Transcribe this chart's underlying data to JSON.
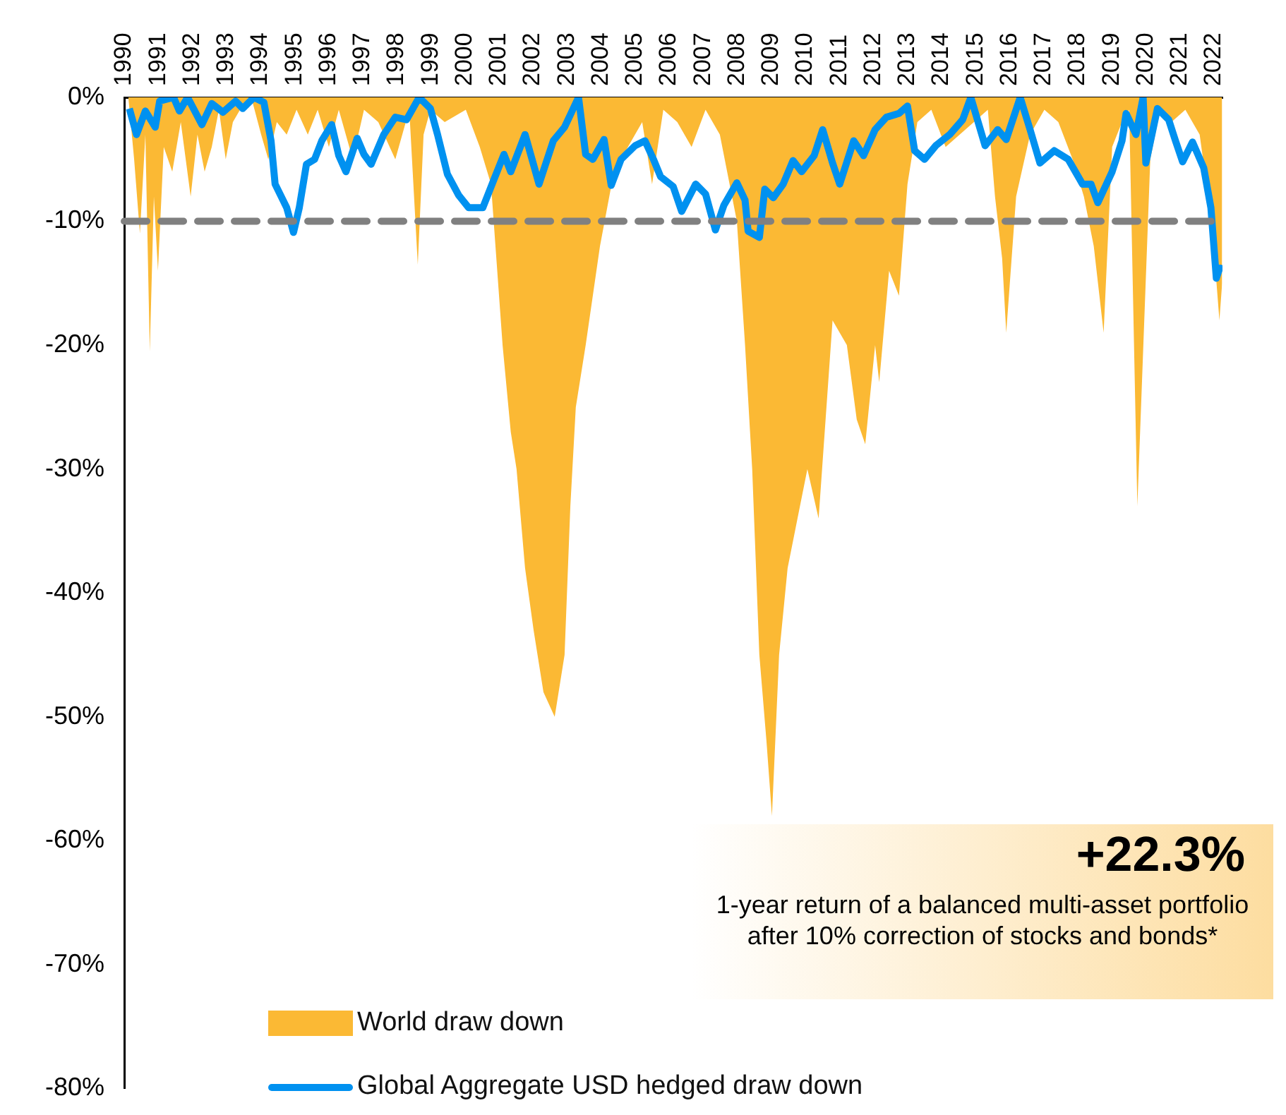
{
  "chart_data": {
    "type": "area",
    "xlim": [
      1990,
      2022.25
    ],
    "xticks": [
      1990,
      1991,
      1992,
      1993,
      1994,
      1995,
      1996,
      1997,
      1998,
      1999,
      2000,
      2001,
      2002,
      2003,
      2004,
      2005,
      2006,
      2007,
      2008,
      2009,
      2010,
      2011,
      2012,
      2013,
      2014,
      2015,
      2016,
      2017,
      2018,
      2019,
      2020,
      2021,
      2022
    ],
    "ylim": [
      -80,
      0
    ],
    "yticks": [
      {
        "value": 0,
        "label": "0%"
      },
      {
        "value": -10,
        "label": "-10%"
      },
      {
        "value": -20,
        "label": "-20%"
      },
      {
        "value": -30,
        "label": "-30%"
      },
      {
        "value": -40,
        "label": "-40%"
      },
      {
        "value": -50,
        "label": "-50%"
      },
      {
        "value": -60,
        "label": "-60%"
      },
      {
        "value": -70,
        "label": "-70%"
      },
      {
        "value": -80,
        "label": "-80%"
      }
    ],
    "grid": false,
    "legend": "bottom left",
    "series": [
      {
        "name": "World draw down",
        "type": "area",
        "color": "#fbb934",
        "x": [
          1990.12,
          1990.29,
          1990.46,
          1990.62,
          1990.75,
          1990.87,
          1990.99,
          1991.16,
          1991.41,
          1991.66,
          1991.95,
          1992.15,
          1992.36,
          1992.57,
          1992.78,
          1992.98,
          1993.19,
          1993.4,
          1993.73,
          1994.02,
          1994.23,
          1994.48,
          1994.77,
          1995.06,
          1995.39,
          1995.68,
          1996.01,
          1996.3,
          1996.71,
          1997.04,
          1997.46,
          1997.96,
          1998.37,
          1998.62,
          1998.79,
          1998.99,
          1999.41,
          2000.03,
          2000.44,
          2000.77,
          2001.11,
          2001.35,
          2001.52,
          2001.77,
          2002.02,
          2002.31,
          2002.64,
          2002.93,
          2003.1,
          2003.26,
          2003.55,
          2003.97,
          2004.38,
          2004.79,
          2005.21,
          2005.5,
          2005.83,
          2006.24,
          2006.66,
          2007.07,
          2007.49,
          2007.99,
          2008.23,
          2008.44,
          2008.65,
          2008.86,
          2009.02,
          2009.23,
          2009.48,
          2009.77,
          2010.06,
          2010.39,
          2010.8,
          2011.22,
          2011.51,
          2011.76,
          2012.05,
          2012.17,
          2012.46,
          2012.75,
          2013.0,
          2013.29,
          2013.7,
          2014.12,
          2014.95,
          2015.36,
          2015.57,
          2015.78,
          2015.9,
          2016.19,
          2016.6,
          2017.02,
          2017.43,
          2017.85,
          2018.18,
          2018.47,
          2018.76,
          2019.01,
          2019.3,
          2019.51,
          2019.75,
          2020.13,
          2020.42,
          2020.75,
          2021.16,
          2021.58,
          2021.83,
          2021.99,
          2022.16,
          2022.24
        ],
        "values": [
          0,
          -5,
          -11,
          -3,
          -20.5,
          -8,
          -14,
          -4,
          -6,
          -2,
          -8,
          -3,
          -6,
          -4,
          -1,
          -5,
          -2,
          -1,
          0,
          -3,
          -5,
          -2,
          -3,
          -1,
          -3,
          -1,
          -4,
          -1,
          -5,
          -1,
          -2,
          -5,
          -1,
          -13.5,
          -3,
          -1,
          -2,
          -1,
          -4,
          -7,
          -20,
          -27,
          -30,
          -38,
          -43,
          -48,
          -50,
          -45,
          -33,
          -25,
          -20,
          -12,
          -6,
          -4,
          -2,
          -7,
          -1,
          -2,
          -4,
          -1,
          -3,
          -10,
          -20,
          -30,
          -45,
          -52,
          -58,
          -45,
          -38,
          -34,
          -30,
          -34,
          -18,
          -20,
          -26,
          -28,
          -20,
          -23,
          -14,
          -16,
          -7,
          -2,
          -1,
          -4,
          -2,
          -1,
          -8,
          -13,
          -19,
          -8,
          -3,
          -1,
          -2,
          -5,
          -8,
          -12,
          -19,
          -4,
          -2,
          -1,
          -33,
          -5,
          -1,
          -2,
          -1,
          -3,
          -8,
          -12,
          -18,
          -15
        ]
      },
      {
        "name": "Global Aggregate USD hedged draw down",
        "type": "line",
        "color": "#0091f0",
        "x": [
          1990.15,
          1990.36,
          1990.62,
          1990.91,
          1991.04,
          1991.45,
          1991.62,
          1991.86,
          1992.28,
          1992.57,
          1992.9,
          1993.27,
          1993.48,
          1993.81,
          1994.1,
          1994.31,
          1994.43,
          1994.77,
          1994.97,
          1995.14,
          1995.35,
          1995.59,
          1995.8,
          1996.09,
          1996.3,
          1996.51,
          1996.84,
          1997.04,
          1997.25,
          1997.62,
          1997.96,
          1998.29,
          1998.66,
          1998.99,
          1999.2,
          1999.49,
          1999.82,
          2000.11,
          2000.53,
          2000.86,
          2001.15,
          2001.35,
          2001.77,
          2002.18,
          2002.6,
          2002.93,
          2003.34,
          2003.55,
          2003.76,
          2004.09,
          2004.3,
          2004.59,
          2005.0,
          2005.29,
          2005.54,
          2005.75,
          2006.12,
          2006.37,
          2006.78,
          2007.07,
          2007.36,
          2007.61,
          2007.99,
          2008.23,
          2008.32,
          2008.65,
          2008.81,
          2009.06,
          2009.35,
          2009.64,
          2009.89,
          2010.26,
          2010.51,
          2010.8,
          2011.01,
          2011.42,
          2011.71,
          2012.05,
          2012.38,
          2012.75,
          2013.0,
          2013.21,
          2013.5,
          2013.83,
          2014.24,
          2014.62,
          2014.86,
          2015.28,
          2015.65,
          2015.9,
          2016.31,
          2016.6,
          2016.89,
          2017.31,
          2017.72,
          2018.14,
          2018.39,
          2018.59,
          2019.01,
          2019.3,
          2019.42,
          2019.71,
          2019.92,
          2020.0,
          2020.34,
          2020.67,
          2020.87,
          2021.08,
          2021.37,
          2021.7,
          2021.91,
          2022.07,
          2022.2
        ],
        "values": [
          -0.9,
          -3,
          -1.1,
          -2.4,
          -0.3,
          0,
          -1.1,
          0,
          -2.2,
          -0.5,
          -1.2,
          -0.3,
          -0.9,
          0,
          -0.4,
          -3.5,
          -7,
          -8.9,
          -10.9,
          -8.9,
          -5.4,
          -5,
          -3.5,
          -2.2,
          -4.7,
          -6,
          -3.3,
          -4.6,
          -5.4,
          -3,
          -1.6,
          -1.8,
          0,
          -0.9,
          -3,
          -6.2,
          -7.9,
          -8.9,
          -8.9,
          -6.6,
          -4.6,
          -6,
          -3,
          -7,
          -3.5,
          -2.4,
          0,
          -4.6,
          -5,
          -3.4,
          -7.1,
          -5,
          -3.9,
          -3.5,
          -5,
          -6.4,
          -7.2,
          -9.2,
          -7,
          -7.8,
          -10.7,
          -8.7,
          -6.9,
          -8.3,
          -10.8,
          -11.3,
          -7.4,
          -8.1,
          -7,
          -5.1,
          -6,
          -4.7,
          -2.6,
          -5.3,
          -7,
          -3.5,
          -4.7,
          -2.6,
          -1.6,
          -1.3,
          -0.7,
          -4.3,
          -5,
          -3.9,
          -3,
          -1.8,
          0,
          -3.9,
          -2.6,
          -3.4,
          0,
          -2.6,
          -5.3,
          -4.3,
          -5,
          -7,
          -7,
          -8.5,
          -6,
          -3.5,
          -1.3,
          -3,
          0,
          -5.3,
          -0.9,
          -1.8,
          -3.5,
          -5.2,
          -3.6,
          -5.7,
          -8.9,
          -14.6,
          -13.5
        ]
      }
    ],
    "ref_lines": [
      {
        "axis": "y",
        "value": -10,
        "color": "#808080",
        "line_style": "dashed"
      }
    ],
    "annotations": [
      "+22.3%",
      "1-year return of a balanced multi-asset portfolio after 10% correction of stocks and bonds*"
    ]
  }
}
